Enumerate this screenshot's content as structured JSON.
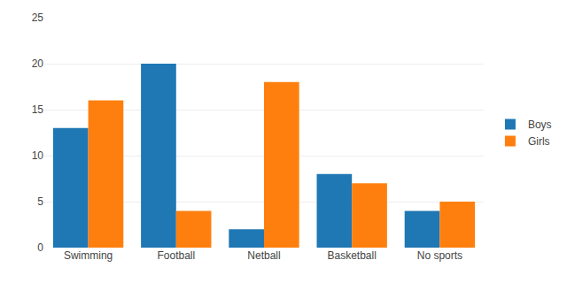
{
  "chart_data": {
    "type": "bar",
    "categories": [
      "Swimming",
      "Football",
      "Netball",
      "Basketball",
      "No sports"
    ],
    "series": [
      {
        "name": "Boys",
        "values": [
          13,
          20,
          2,
          8,
          4
        ]
      },
      {
        "name": "Girls",
        "values": [
          16,
          4,
          18,
          7,
          5
        ]
      }
    ],
    "ylim": [
      0,
      25
    ],
    "yticks": [
      0,
      5,
      10,
      15,
      20,
      25
    ],
    "grid": true,
    "legend": "right"
  }
}
